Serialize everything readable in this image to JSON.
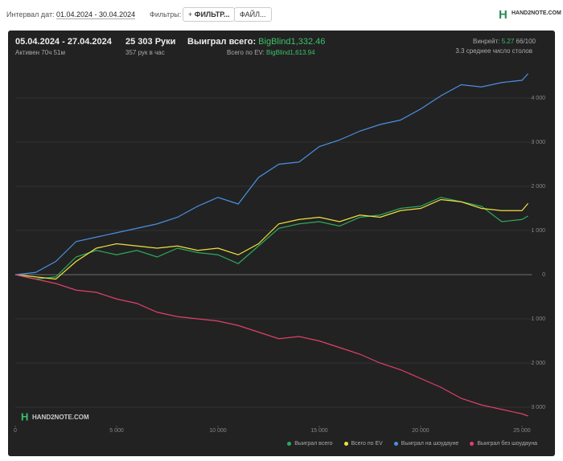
{
  "header": {
    "interval_label": "Интервал дат:",
    "interval": "01.04.2024 - 30.04.2024",
    "filters_label": "Фильтры:",
    "filter_button": "ФИЛЬТР...",
    "file_button": "ФАЙЛ...",
    "logo": "HAND2NOTE.COM"
  },
  "stats": {
    "period": "05.04.2024 - 27.04.2024",
    "active": "Активен 70ч 51м",
    "hands": "25 303 Руки",
    "hands_per_hour": "357 рук в час",
    "won_label": "Выиграл всего:",
    "won": "BigBlind1,332.46",
    "ev_label": "Всего по EV:",
    "ev": "BigBlind1,613.94",
    "winrate_label": "Винрейт:",
    "winrate": "5.27",
    "winrate_unit": "66/100",
    "tables": "3.3 среднее число столов"
  },
  "chart_data": {
    "type": "line",
    "watermark": "HAND2NOTE.COM",
    "x": [
      0,
      1000,
      2000,
      3000,
      4000,
      5000,
      6000,
      7000,
      8000,
      9000,
      10000,
      11000,
      12000,
      13000,
      14000,
      15000,
      16000,
      17000,
      18000,
      19000,
      20000,
      21000,
      22000,
      23000,
      24000,
      25000,
      25300
    ],
    "series": [
      {
        "name": "Выиграл всего",
        "color": "#2eaa5c",
        "values": [
          0,
          -100,
          -50,
          400,
          550,
          450,
          550,
          400,
          600,
          500,
          450,
          250,
          650,
          1050,
          1150,
          1200,
          1100,
          1300,
          1350,
          1500,
          1550,
          1750,
          1650,
          1550,
          1200,
          1250,
          1330
        ]
      },
      {
        "name": "Всего по EV",
        "color": "#f0e040",
        "values": [
          0,
          -50,
          -100,
          300,
          600,
          700,
          650,
          600,
          650,
          550,
          600,
          450,
          700,
          1150,
          1250,
          1300,
          1200,
          1350,
          1300,
          1450,
          1500,
          1700,
          1650,
          1500,
          1450,
          1450,
          1614
        ]
      },
      {
        "name": "Выиграл на шоудауне",
        "color": "#4a90e2",
        "values": [
          0,
          50,
          300,
          750,
          850,
          950,
          1050,
          1150,
          1300,
          1550,
          1750,
          1600,
          2200,
          2500,
          2550,
          2900,
          3050,
          3250,
          3400,
          3500,
          3750,
          4050,
          4300,
          4250,
          4350,
          4400,
          4550
        ]
      },
      {
        "name": "Выиграл без шоудауна",
        "color": "#e0406a",
        "values": [
          0,
          -100,
          -200,
          -350,
          -400,
          -550,
          -650,
          -850,
          -950,
          -1000,
          -1050,
          -1150,
          -1300,
          -1450,
          -1400,
          -1500,
          -1650,
          -1800,
          -2000,
          -2150,
          -2350,
          -2550,
          -2800,
          -2950,
          -3050,
          -3150,
          -3200
        ]
      }
    ],
    "xlim": [
      0,
      25500
    ],
    "xticks": [
      0,
      {
        "value": 5000,
        "label": "5 000"
      },
      {
        "value": 10000,
        "label": "10 000"
      },
      {
        "value": 15000,
        "label": "15 000"
      },
      {
        "value": 20000,
        "label": "20 000"
      },
      {
        "value": 25000,
        "label": "25 000"
      }
    ],
    "ylim": [
      -3300,
      4700
    ],
    "yticks": [
      {
        "value": -3000,
        "label": "3 000"
      },
      {
        "value": -2000,
        "label": "2 000"
      },
      {
        "value": -1000,
        "label": "1 000"
      },
      0,
      {
        "value": 1000,
        "label": "1 000"
      },
      {
        "value": 2000,
        "label": "2 000"
      },
      {
        "value": 3000,
        "label": "3 000"
      },
      {
        "value": 4000,
        "label": "4 000"
      }
    ],
    "grid": true
  }
}
